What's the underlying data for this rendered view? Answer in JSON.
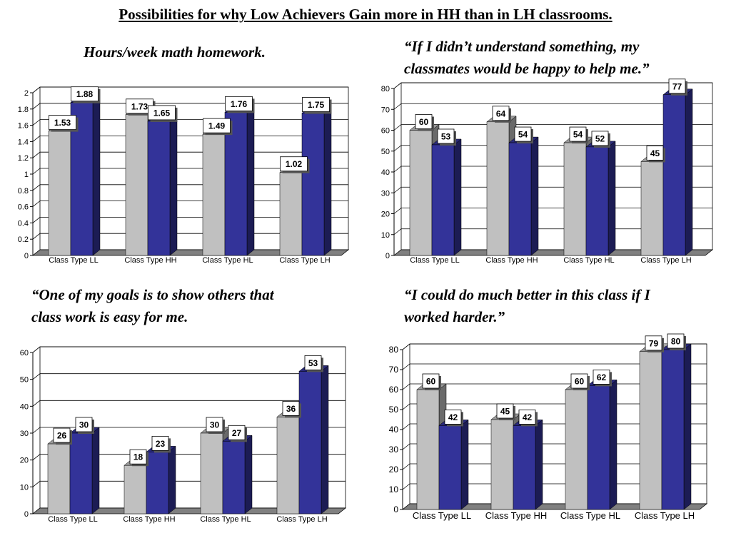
{
  "title": "Possibilities for why Low Achievers Gain more in HH than in LH classrooms.",
  "colors": {
    "series_a": "#c0c0c0",
    "series_b": "#333399",
    "grid": "#000000",
    "floor": "#808080"
  },
  "panels": [
    {
      "caption_lines": [
        "Hours/week math homework."
      ]
    },
    {
      "caption_lines": [
        "“If I didn’t understand something, my",
        "classmates would be happy to help me.”"
      ]
    },
    {
      "caption_lines": [
        "“One of my goals is to show others that",
        "class work is easy for me."
      ]
    },
    {
      "caption_lines": [
        "“I could do much better in this class if I",
        "worked harder.”"
      ]
    }
  ],
  "chart_data": [
    {
      "type": "bar",
      "categories": [
        "Class Type LL",
        "Class Type HH",
        "Class Type HL",
        "Class Type LH"
      ],
      "series": [
        {
          "values": [
            1.53,
            1.73,
            1.49,
            1.02
          ]
        },
        {
          "values": [
            1.88,
            1.65,
            1.76,
            1.75
          ]
        }
      ],
      "value_labels": [
        [
          "1.53",
          "1.73",
          "1.49",
          "1.02"
        ],
        [
          "1.88",
          "1.65",
          "1.76",
          "1.75"
        ]
      ],
      "yticks": [
        "0",
        "0.2",
        "0.4",
        "0.6",
        "0.8",
        "1",
        "1.2",
        "1.4",
        "1.6",
        "1.8",
        "2"
      ],
      "ylim": [
        0,
        2
      ],
      "grid": true,
      "legend": "none"
    },
    {
      "type": "bar",
      "categories": [
        "Class Type LL",
        "Class Type HH",
        "Class Type HL",
        "Class Type LH"
      ],
      "series": [
        {
          "values": [
            60,
            64,
            54,
            45
          ]
        },
        {
          "values": [
            53,
            54,
            52,
            77
          ]
        }
      ],
      "value_labels": [
        [
          "60",
          "64",
          "54",
          "45"
        ],
        [
          "53",
          "54",
          "52",
          "77"
        ]
      ],
      "yticks": [
        "0",
        "10",
        "20",
        "30",
        "40",
        "50",
        "60",
        "70",
        "80"
      ],
      "ylim": [
        0,
        80
      ],
      "grid": true,
      "legend": "none"
    },
    {
      "type": "bar",
      "categories": [
        "Class Type LL",
        "Class Type HH",
        "Class Type HL",
        "Class Type LH"
      ],
      "series": [
        {
          "values": [
            26,
            18,
            30,
            36
          ]
        },
        {
          "values": [
            30,
            23,
            27,
            53
          ]
        }
      ],
      "value_labels": [
        [
          "26",
          "18",
          "30",
          "36"
        ],
        [
          "30",
          "23",
          "27",
          "53"
        ]
      ],
      "yticks": [
        "0",
        "10",
        "20",
        "30",
        "40",
        "50",
        "60"
      ],
      "ylim": [
        0,
        60
      ],
      "grid": true,
      "legend": "none"
    },
    {
      "type": "bar",
      "categories": [
        "Class Type LL",
        "Class Type HH",
        "Class Type HL",
        "Class Type LH"
      ],
      "series": [
        {
          "values": [
            60,
            45,
            60,
            79
          ]
        },
        {
          "values": [
            42,
            42,
            62,
            80
          ]
        }
      ],
      "value_labels": [
        [
          "60",
          "45",
          "60",
          "79"
        ],
        [
          "42",
          "42",
          "62",
          "80"
        ]
      ],
      "yticks": [
        "0",
        "10",
        "20",
        "30",
        "40",
        "50",
        "60",
        "70",
        "80"
      ],
      "ylim": [
        0,
        80
      ],
      "grid": true,
      "legend": "none"
    }
  ]
}
